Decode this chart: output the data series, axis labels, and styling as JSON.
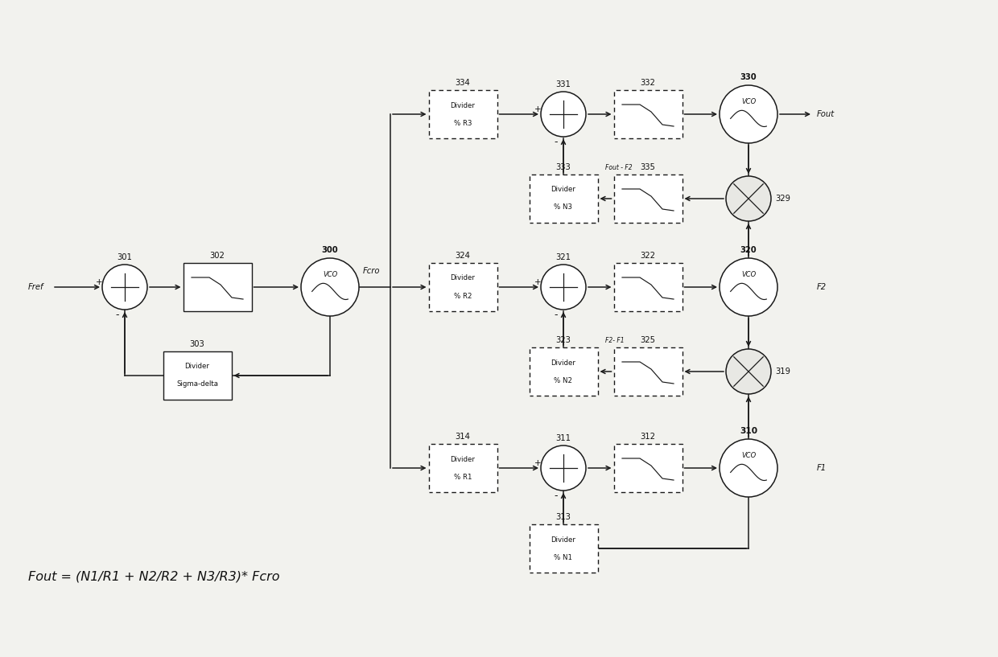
{
  "bg_color": "#f2f2ee",
  "line_color": "#1a1a1a",
  "box_color": "#ffffff",
  "text_color": "#111111",
  "formula": "Fout = (N1/R1 + N2/R2 + N3/R3)* Fcro",
  "figsize": [
    12.4,
    8.17
  ],
  "dpi": 100,
  "xlim": [
    0,
    12.4
  ],
  "ylim": [
    0,
    8.17
  ]
}
